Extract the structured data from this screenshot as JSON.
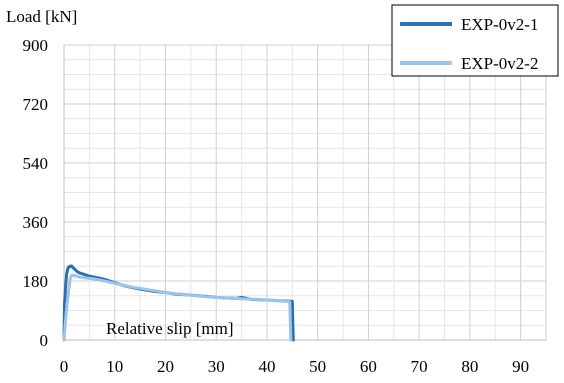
{
  "chart_data": {
    "type": "line",
    "xlabel": "Relative slip [mm]",
    "ylabel": "Load [kN]",
    "xlim": [
      0,
      95
    ],
    "ylim": [
      0,
      900
    ],
    "x_ticks": [
      0,
      10,
      20,
      30,
      40,
      50,
      60,
      70,
      80,
      90
    ],
    "y_ticks": [
      0,
      180,
      360,
      540,
      720,
      900
    ],
    "x_tick_labels": [
      "0",
      "10",
      "20",
      "30",
      "40",
      "50",
      "60",
      "70",
      "80",
      "90"
    ],
    "y_tick_labels": [
      "0",
      "180",
      "360",
      "540",
      "720",
      "900"
    ],
    "grid": true,
    "legend_position": "top-right",
    "series": [
      {
        "name": "EXP-0v2-1",
        "color": "#2e6fad",
        "x": [
          0,
          0.1,
          0.3,
          0.5,
          0.7,
          0.9,
          1.1,
          1.3,
          1.5,
          1.7,
          2,
          2.5,
          3,
          4,
          5,
          6,
          8,
          10,
          12,
          15,
          18,
          20,
          22,
          25,
          28,
          30,
          32,
          34,
          35,
          37,
          40,
          42,
          44,
          45,
          45.1,
          45.2
        ],
        "y": [
          0,
          110,
          160,
          200,
          215,
          222,
          225,
          224,
          226,
          222,
          218,
          210,
          205,
          200,
          195,
          192,
          185,
          175,
          165,
          155,
          148,
          145,
          140,
          137,
          133,
          130,
          128,
          127,
          130,
          124,
          122,
          120,
          119,
          118,
          50,
          0
        ]
      },
      {
        "name": "EXP-0v2-2",
        "color": "#9dc3e6",
        "x": [
          0,
          0.3,
          0.6,
          1,
          1.2,
          1.4,
          1.6,
          2,
          2.5,
          3,
          4,
          5,
          6,
          7,
          8,
          10,
          12,
          14,
          16,
          18,
          20,
          22,
          25,
          28,
          30,
          32,
          35,
          38,
          40,
          42,
          44,
          44.5,
          44.6,
          44.7
        ],
        "y": [
          0,
          60,
          110,
          160,
          185,
          195,
          198,
          197,
          195,
          192,
          190,
          188,
          186,
          183,
          180,
          173,
          166,
          160,
          155,
          150,
          145,
          141,
          137,
          132,
          130,
          128,
          126,
          124,
          122,
          120,
          118,
          117,
          60,
          0
        ]
      }
    ]
  }
}
